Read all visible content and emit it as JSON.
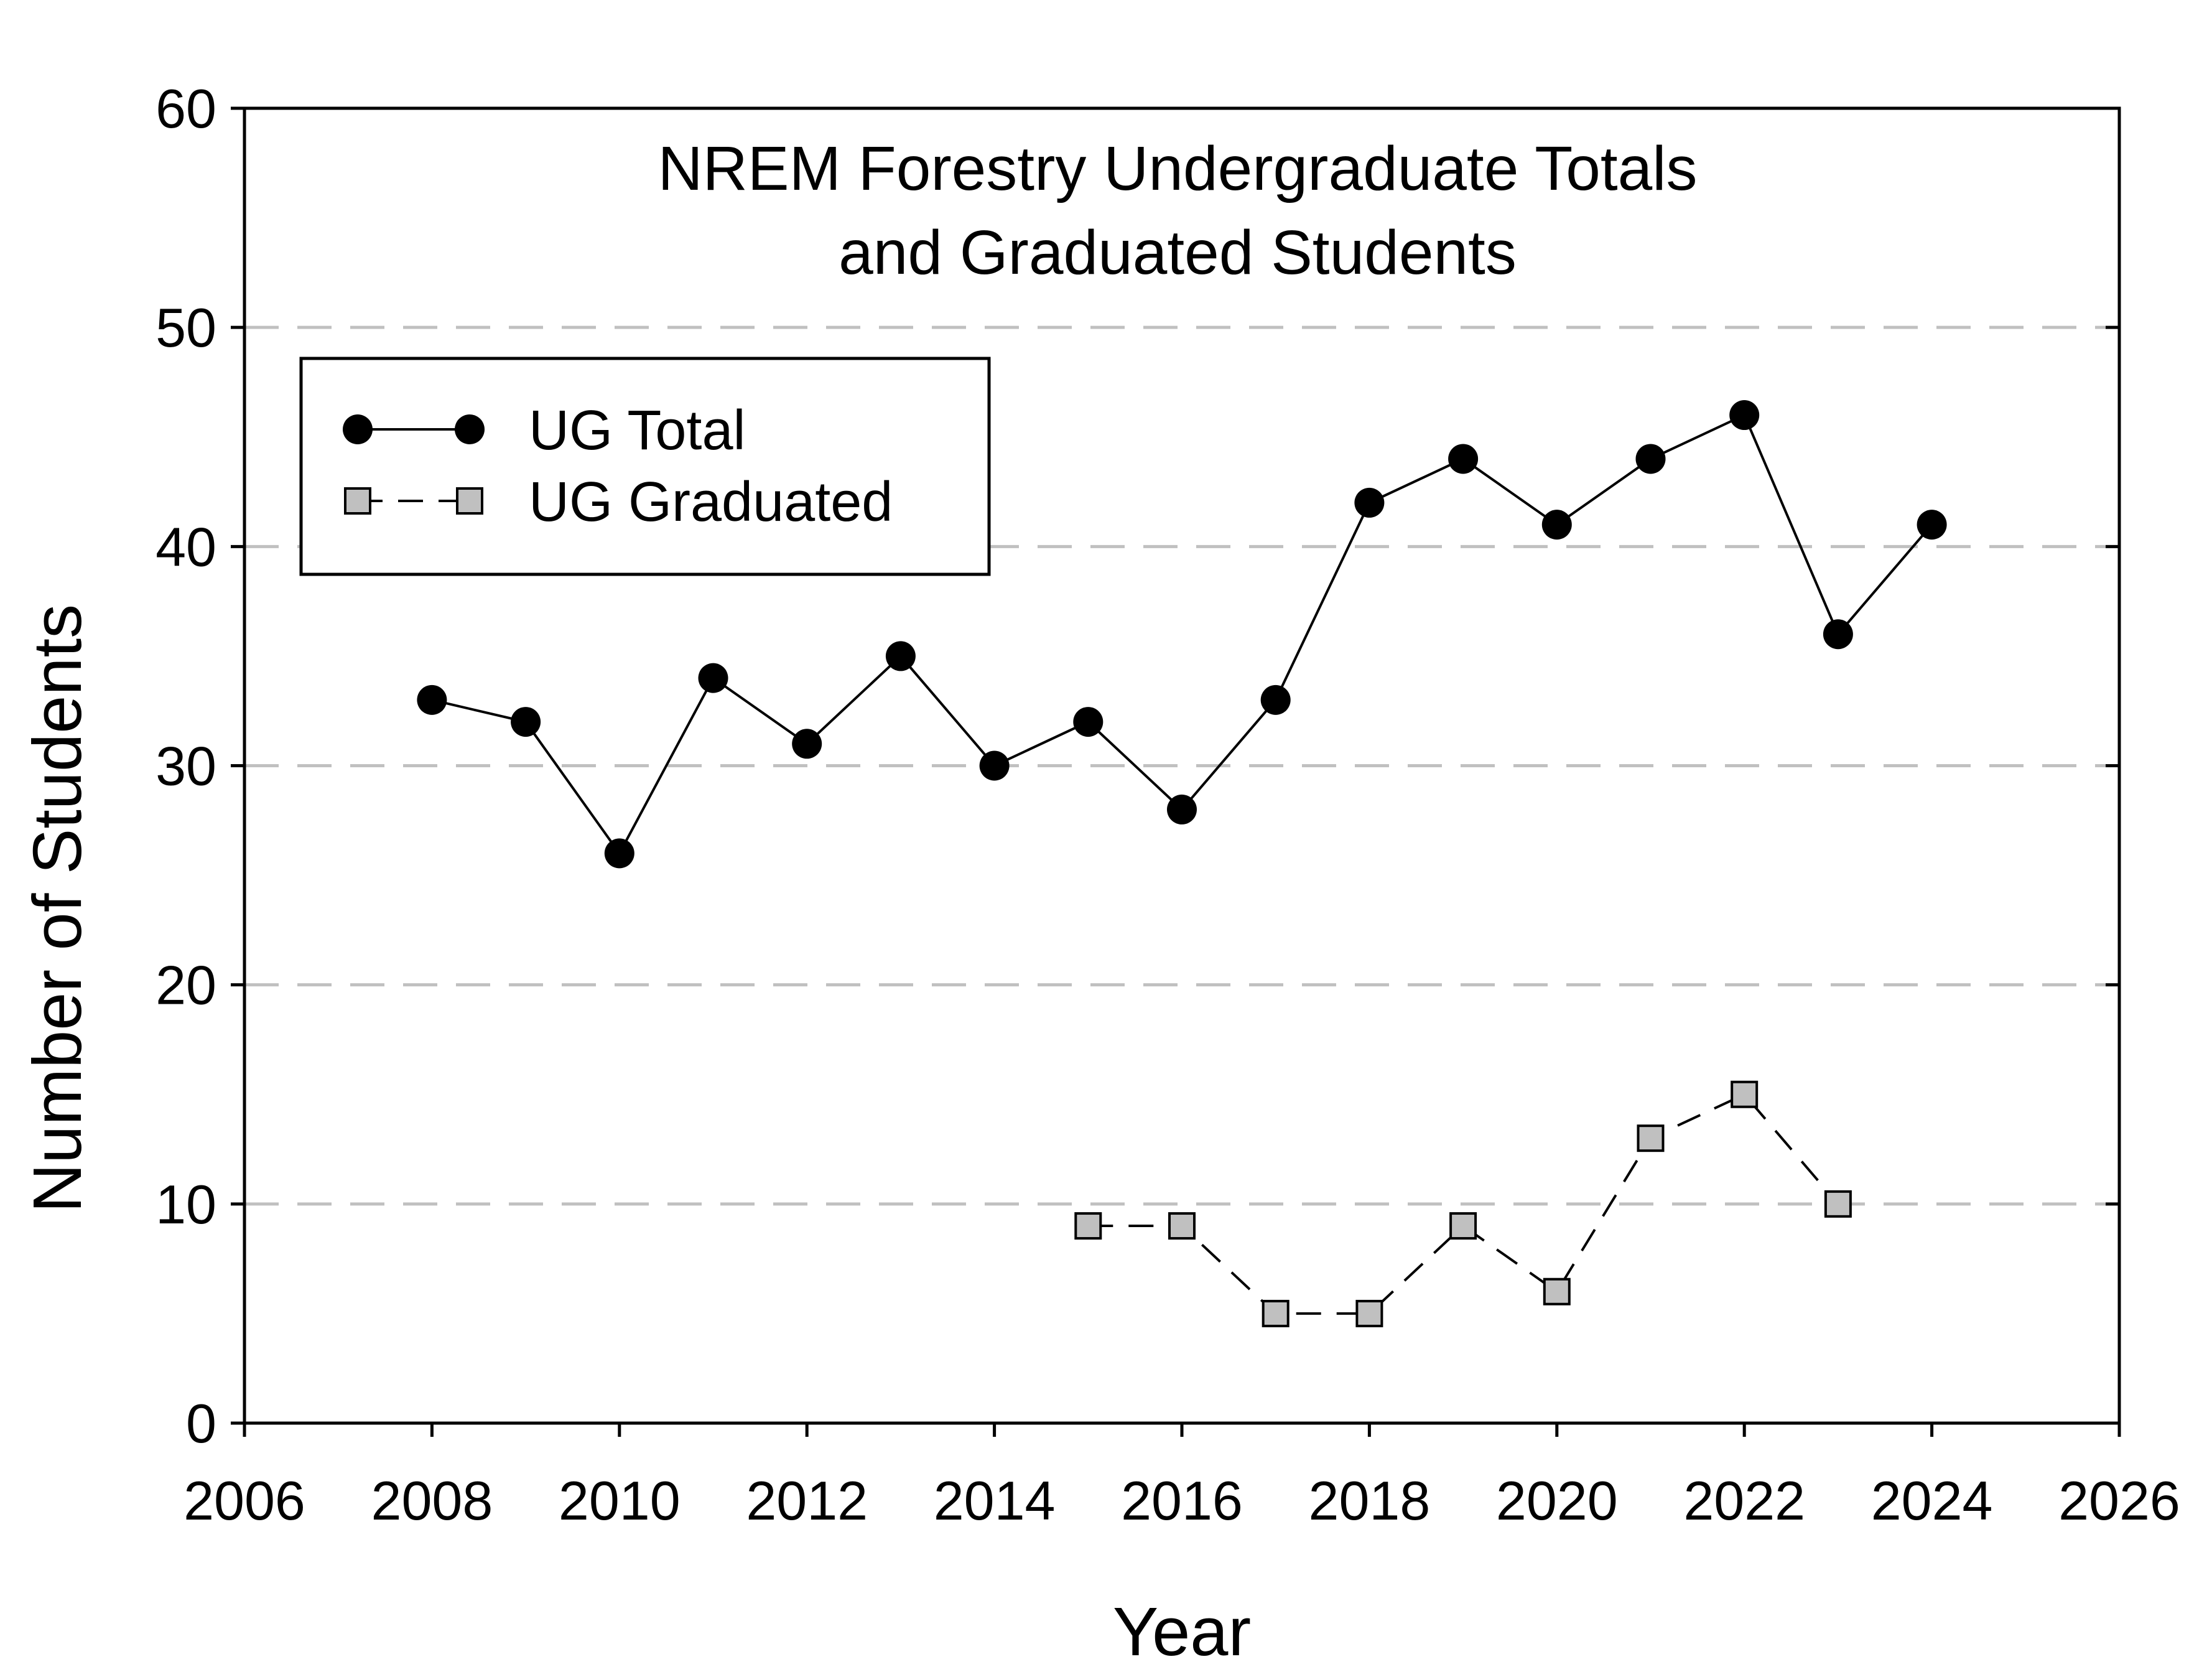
{
  "chart_data": {
    "type": "line",
    "title_lines": [
      "NREM Forestry Undergraduate Totals",
      "and Graduated Students"
    ],
    "xlabel": "Year",
    "ylabel": "Number of Students",
    "xlim": [
      2006,
      2026
    ],
    "ylim": [
      0,
      60
    ],
    "xticks": [
      2006,
      2008,
      2010,
      2012,
      2014,
      2016,
      2018,
      2020,
      2022,
      2024,
      2026
    ],
    "yticks": [
      0,
      10,
      20,
      30,
      40,
      50,
      60
    ],
    "grid": "horizontal dashed at 10, 20, 30, 40, 50",
    "legend_position": "upper-left",
    "series": [
      {
        "name": "UG Total",
        "marker": "circle",
        "line": "solid",
        "color": "#000000",
        "x": [
          2008,
          2009,
          2010,
          2011,
          2012,
          2013,
          2014,
          2015,
          2016,
          2017,
          2018,
          2019,
          2020,
          2021,
          2022,
          2023,
          2024
        ],
        "y": [
          33,
          32,
          26,
          34,
          31,
          35,
          30,
          32,
          28,
          33,
          42,
          44,
          41,
          44,
          46,
          36,
          41
        ]
      },
      {
        "name": "UG Graduated",
        "marker": "square",
        "line": "dashed",
        "color": "#c0c0c0",
        "x": [
          2015,
          2016,
          2017,
          2018,
          2019,
          2020,
          2021,
          2022,
          2023
        ],
        "y": [
          9,
          9,
          5,
          5,
          9,
          6,
          13,
          15,
          10
        ]
      }
    ]
  }
}
